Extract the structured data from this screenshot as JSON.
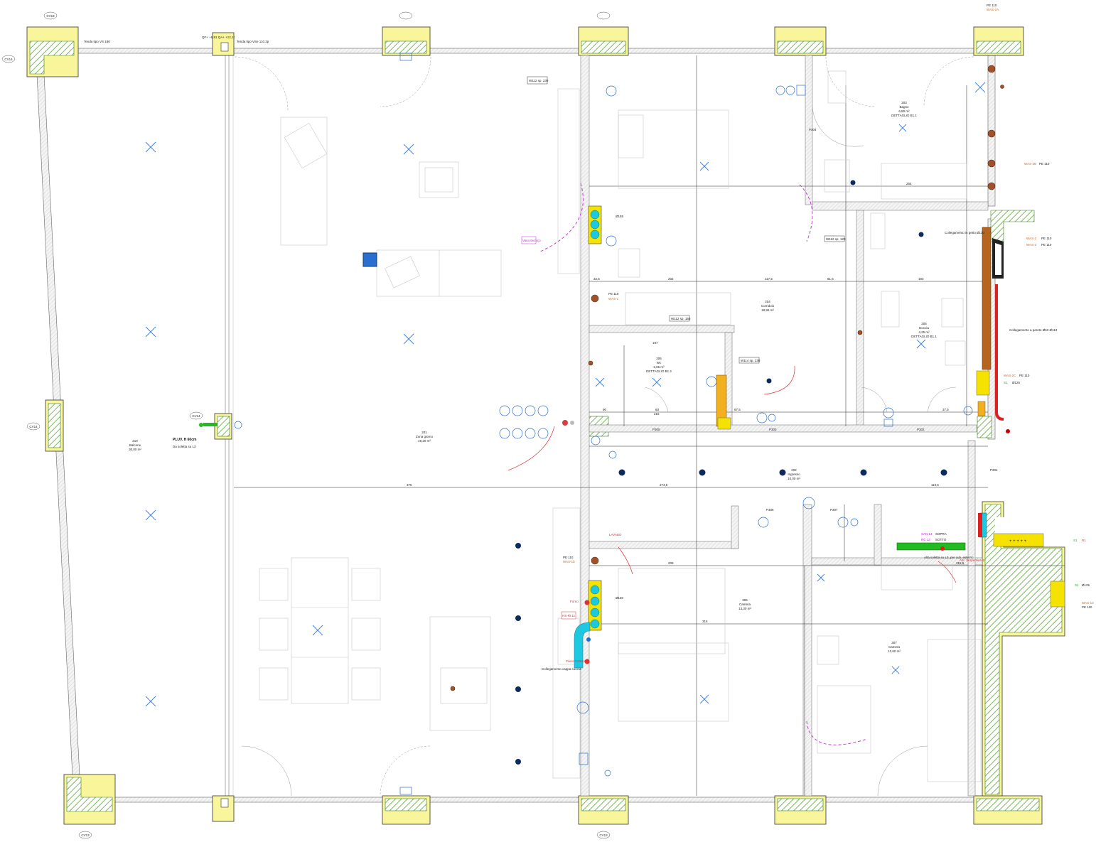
{
  "colors": {
    "wall_outline": "#555555",
    "column_fill": "#f8f59a",
    "hatch": "#5aa832",
    "water": "#2a6fd0",
    "mep_magenta": "#c026d3",
    "mep_red": "#e03030",
    "drain_orange": "#d2691e",
    "pipe_cyan": "#1ec8e0",
    "pipe_green": "#22bb22",
    "pipe_yellow": "#f5e200",
    "dark_blue_spot": "#0d2a5e"
  },
  "axes": {
    "CV13_top": "CV13",
    "CV14_left": "CV14",
    "CV14_mid": "CV14",
    "CV14_inner": "CV14",
    "CV13_bottom_left": "CV13",
    "CV13_bottom_mid": "CV13"
  },
  "rooms": [
    {
      "id": "r201",
      "number": "201",
      "name": "Zona giorno",
      "area": "49,20 m²"
    },
    {
      "id": "r202",
      "number": "202",
      "name": "Ingresso",
      "area": "10,00 m²"
    },
    {
      "id": "r203",
      "number": "203",
      "name": "Bagno",
      "area": "6,80 m²",
      "note": "DETTAGLIO B1.1"
    },
    {
      "id": "r204",
      "number": "204",
      "name": "Corridoio",
      "area": "18,95 m²"
    },
    {
      "id": "r205",
      "number": "205",
      "name": "Doccia",
      "area": "4,25 m²",
      "note": "DETTAGLIO B1.1"
    },
    {
      "id": "r206",
      "number": "206",
      "name": "Wc",
      "area": "2,65 m²",
      "note": "DETTAGLIO B1.2"
    },
    {
      "id": "r210",
      "number": "210",
      "name": "Balcone",
      "area": "30,00 m²"
    },
    {
      "id": "r306",
      "number": "306",
      "name": "Camera",
      "area": "13,30 m²"
    },
    {
      "id": "r307",
      "number": "307",
      "name": "Camera",
      "area": "12,60 m²"
    }
  ],
  "callouts": {
    "pe110_top": "PE 110",
    "was2a": "WAS-2A",
    "was2b": "WAS-2B",
    "pe110_b": "PE 110",
    "was2": "WAS-2",
    "was3": "WAS-3",
    "pe110_c": "PE 110",
    "pe110_d": "PE 110",
    "collegamento_getto": "Collegamento in getto Ø110",
    "collegamento_parete": "Collegamento a parete Ø63 Ø113",
    "was2c": "WAS-2C",
    "pe110_e": "PE 110",
    "s1_125": "S1",
    "d125": "Ø125",
    "pe110_living": "PE 110",
    "was1": "WAS-1",
    "pe110_kitchen": "PE 110",
    "was1b": "WAS-1b",
    "pluv": "PLUV. H 60cm",
    "da_soletta": "Da soletta su L3",
    "alta_soletta": "Alta soletta su L3, per cub. esterno",
    "attr_serpentina": "Attr. Serpentina 11",
    "san13": "SAN 13",
    "rc12": "RC 12",
    "sopra": "SOPRA",
    "sotto": "SOTTO",
    "collegamento_cappa": "Collegamento cappa cucina",
    "forno": "Forno",
    "piano_cottura": "Piano Cottura",
    "lavabo": "LAVABO",
    "s1_r1": "S1",
    "r1": "R1",
    "s1_2": "S1",
    "d125_2": "Ø125",
    "was13": "WAS-13",
    "pe110_f": "PE 110"
  },
  "tags": {
    "w112_230": "W112 sp. 230",
    "w112_150": "W112 sp. 150",
    "w112_120": "W112 sp. 120",
    "w114_230": "W114 sp. 230",
    "tenda": "Tenda tipo VSe 110.2p",
    "tenda2": "Tenda tipo VS 180",
    "qa_top": "QF+ +9,91 QA+ +12,1c",
    "p301": "P301",
    "p302": "P302",
    "p303": "P303",
    "p304": "P304",
    "p305": "P305",
    "p306": "P306",
    "p307": "P307",
    "d155": "Ø155",
    "d150": "Ø150",
    "vano_tecnico": "Vano tecnico",
    "hs": "HS-RI 11"
  },
  "dimensions": {
    "d202": "202",
    "d1175": "117,5",
    "d815": "81,5",
    "d193": "193",
    "d376": "376",
    "d2745": "274,5",
    "d1195": "119,5",
    "d315": "315",
    "d209": "209",
    "d3155": "315,5",
    "d254": "254",
    "d197": "197",
    "d2": "32,5",
    "d3": "90",
    "d4": "60",
    "d5": "87,5",
    "d6": "37,5",
    "d7": "215"
  }
}
